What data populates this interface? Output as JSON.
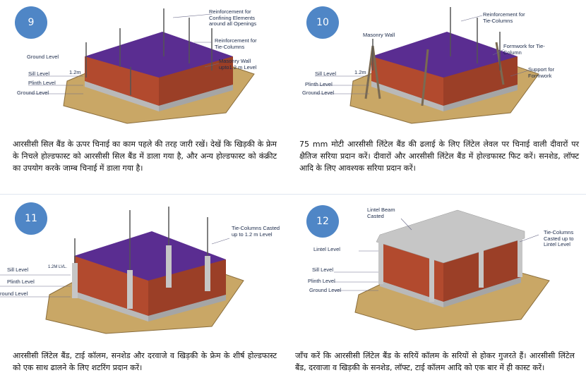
{
  "panels": [
    {
      "step": "9",
      "labels": {
        "reinf_openings": "Reinforcement for\nConfining Elements\naround all Openings",
        "reinf_tie": "Reinforcement for\nTie-Columns",
        "masonry": "Masonry Wall\nupto1.2 m Level",
        "ground_top": "Ground Level",
        "sill": "Sill Level",
        "dim": "1.2m",
        "plinth": "Plinth Level",
        "ground": "Ground Level"
      },
      "caption": "आरसीसी सिल बैंड के ऊपर चिनाई का काम पहले की तरह जारी रखें। देखें कि खिड़की के फ्रेम के निचले होल्डफास्ट को आरसीसी सिल बैंड में डाला गया है, और अन्य होल्डफास्ट को कंक्रीट का उपयोग करके जाम्ब चिनाई में डाला गया है।"
    },
    {
      "step": "10",
      "labels": {
        "reinf_tie": "Reinforcement for\nTie-Columns",
        "masonry": "Masonry Wall",
        "formwork": "Formwork for Tie-\nColumn",
        "support": "Support for\nFormwork",
        "sill": "Sill Level",
        "dim": "1.2m",
        "plinth": "Plinth Level",
        "ground": "Ground Level"
      },
      "caption": "75 mm मोटी आरसीसी लिंटेल बैंड की ढलाई के लिए लिंटेल लेवल पर चिनाई वाली दीवारों पर क्षैतिज सरिया प्रदान करें। दीवारों और आरसीसी लिंटेल बैंड में होल्डफास्ट फिट करें। सनशेड, लॉफ्ट आदि के लिए आवश्यक सरिया प्रदान करें।"
    },
    {
      "step": "11",
      "labels": {
        "tie_cast": "Tie-Columns Casted\nup to 1.2 m Level",
        "sill": "Sill Level",
        "dim": "1.2M LVL.",
        "plinth": "Plinth Level",
        "ground": "round Level"
      },
      "caption": "आरसीसी लिंटेल बैंड, टाई कॉलम, सनशेड और दरवाजे व खिड़की के फ्रेम के शीर्ष होल्डफास्ट को एक साथ ढालने के लिए शटरिंग प्रदान करें।"
    },
    {
      "step": "12",
      "labels": {
        "lintel_beam": "Lintel Beam\nCasted",
        "tie_lintel": "Tie-Columns\nCasted up to\nLintel Level",
        "lintel": "Lintel Level",
        "sill": "Sill Level",
        "plinth": "Plinth Level",
        "ground": "Ground Level"
      },
      "caption": "जाँच करें कि आरसीसी लिंटेल बैंड के सरियें कॉलम के सरियों से होकर गुजरते हैं। आरसीसी लिंटेल बैंड, दरवाजा व खिड़की के सनशेड, लॉफ्ट, टाई कॉलम आदि को एक बार में ही कास्ट करें।"
    }
  ],
  "colors": {
    "step_badge": "#4f86c6",
    "brick": "#b24a2e",
    "purple": "#5a2d91",
    "ground": "#c9a766",
    "concrete": "#b9b9b9"
  }
}
